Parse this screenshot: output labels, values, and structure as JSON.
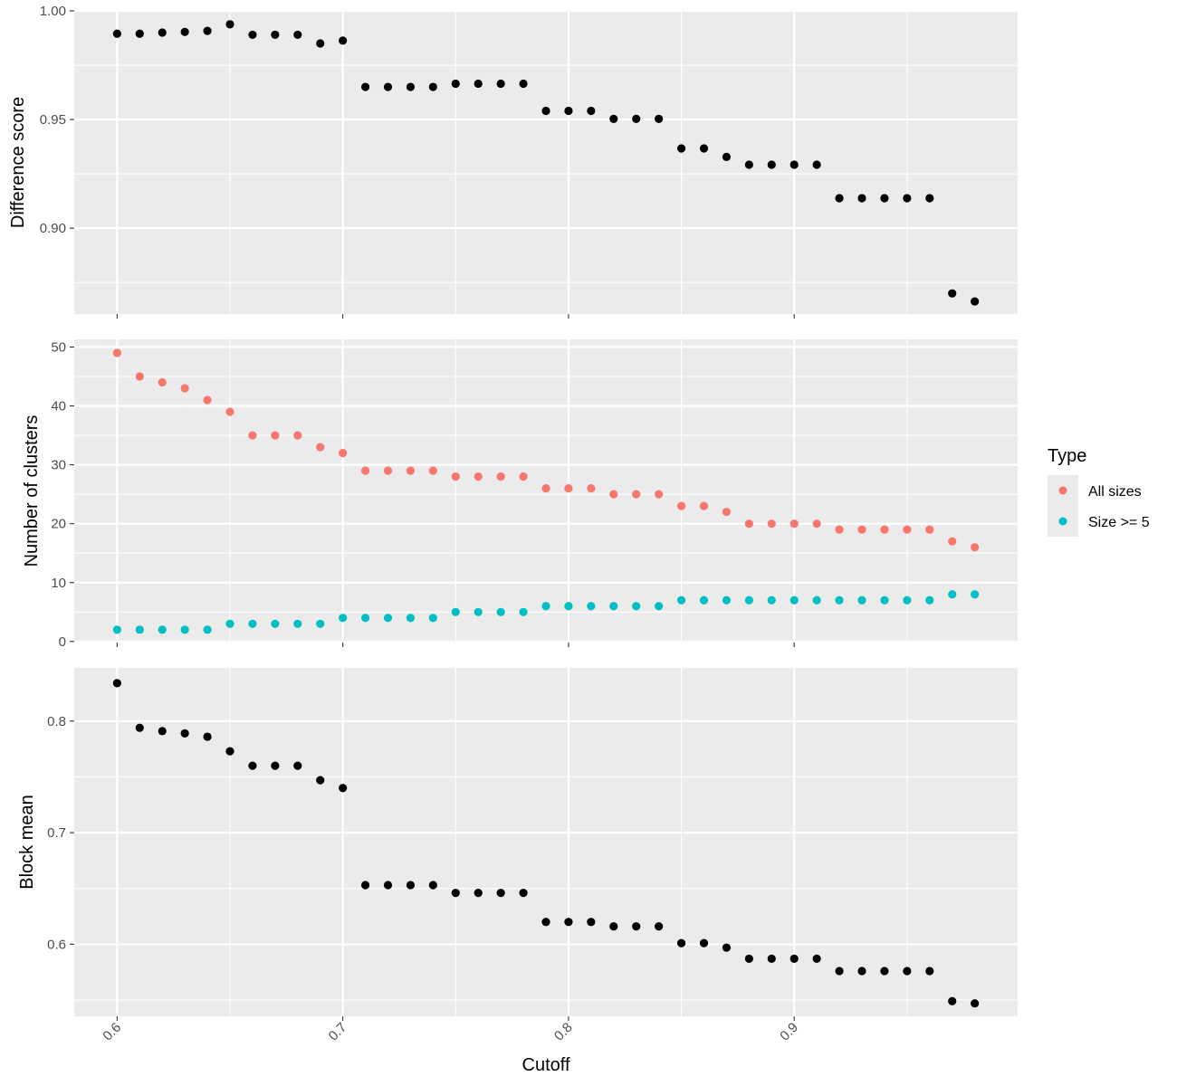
{
  "chart_data": [
    {
      "type": "scatter",
      "ylabel": "Difference score",
      "xlabel": "",
      "ylim": [
        0.8605,
        1.0
      ],
      "yticks": [
        0.9,
        0.95,
        1.0
      ],
      "ytick_labels": [
        "0.90",
        "0.95",
        "1.00"
      ],
      "xlim": [
        0.581,
        0.999
      ],
      "xticks": [
        0.6,
        0.7,
        0.8,
        0.9
      ],
      "grid": true,
      "series": [
        {
          "color": "#000000",
          "x": [
            0.6,
            0.61,
            0.62,
            0.63,
            0.64,
            0.65,
            0.66,
            0.67,
            0.68,
            0.69,
            0.7,
            0.71,
            0.72,
            0.73,
            0.74,
            0.75,
            0.76,
            0.77,
            0.78,
            0.79,
            0.8,
            0.81,
            0.82,
            0.83,
            0.84,
            0.85,
            0.86,
            0.87,
            0.88,
            0.89,
            0.9,
            0.91,
            0.92,
            0.93,
            0.94,
            0.95,
            0.96,
            0.97,
            0.98
          ],
          "y": [
            0.9895,
            0.9895,
            0.99,
            0.9903,
            0.9908,
            0.9938,
            0.989,
            0.989,
            0.989,
            0.985,
            0.9863,
            0.965,
            0.965,
            0.965,
            0.965,
            0.9665,
            0.9665,
            0.9665,
            0.9665,
            0.954,
            0.954,
            0.954,
            0.9503,
            0.9503,
            0.9503,
            0.9367,
            0.9367,
            0.9328,
            0.9292,
            0.9292,
            0.9292,
            0.9292,
            0.9138,
            0.9138,
            0.9138,
            0.9138,
            0.9138,
            0.87,
            0.8663
          ]
        }
      ]
    },
    {
      "type": "scatter",
      "ylabel": "Number of clusters",
      "xlabel": "",
      "ylim": [
        -0.18,
        51.3
      ],
      "yticks": [
        0,
        10,
        20,
        30,
        40,
        50
      ],
      "ytick_labels": [
        "0",
        "10",
        "20",
        "30",
        "40",
        "50"
      ],
      "xlim": [
        0.581,
        0.999
      ],
      "xticks": [
        0.6,
        0.7,
        0.8,
        0.9
      ],
      "grid": true,
      "legend": {
        "title": "Type",
        "placement": "right",
        "entries": [
          "All sizes",
          "Size >= 5"
        ]
      },
      "series": [
        {
          "name": "All sizes",
          "color": "#F8766D",
          "x": [
            0.6,
            0.61,
            0.62,
            0.63,
            0.64,
            0.65,
            0.66,
            0.67,
            0.68,
            0.69,
            0.7,
            0.71,
            0.72,
            0.73,
            0.74,
            0.75,
            0.76,
            0.77,
            0.78,
            0.79,
            0.8,
            0.81,
            0.82,
            0.83,
            0.84,
            0.85,
            0.86,
            0.87,
            0.88,
            0.89,
            0.9,
            0.91,
            0.92,
            0.93,
            0.94,
            0.95,
            0.96,
            0.97,
            0.98
          ],
          "y": [
            49,
            45,
            44,
            43,
            41,
            39,
            35,
            35,
            35,
            33,
            32,
            29,
            29,
            29,
            29,
            28,
            28,
            28,
            28,
            26,
            26,
            26,
            25,
            25,
            25,
            23,
            23,
            22,
            20,
            20,
            20,
            20,
            19,
            19,
            19,
            19,
            19,
            17,
            16
          ]
        },
        {
          "name": "Size >= 5",
          "color": "#00BFC4",
          "x": [
            0.6,
            0.61,
            0.62,
            0.63,
            0.64,
            0.65,
            0.66,
            0.67,
            0.68,
            0.69,
            0.7,
            0.71,
            0.72,
            0.73,
            0.74,
            0.75,
            0.76,
            0.77,
            0.78,
            0.79,
            0.8,
            0.81,
            0.82,
            0.83,
            0.84,
            0.85,
            0.86,
            0.87,
            0.88,
            0.89,
            0.9,
            0.91,
            0.92,
            0.93,
            0.94,
            0.95,
            0.96,
            0.97,
            0.98
          ],
          "y": [
            2,
            2,
            2,
            2,
            2,
            3,
            3,
            3,
            3,
            3,
            4,
            4,
            4,
            4,
            4,
            5,
            5,
            5,
            5,
            6,
            6,
            6,
            6,
            6,
            6,
            7,
            7,
            7,
            7,
            7,
            7,
            7,
            7,
            7,
            7,
            7,
            7,
            8,
            8
          ]
        }
      ]
    },
    {
      "type": "scatter",
      "ylabel": "Block mean",
      "xlabel": "Cutoff",
      "ylim": [
        0.5354,
        0.8477
      ],
      "yticks": [
        0.6,
        0.7,
        0.8
      ],
      "ytick_labels": [
        "0.6",
        "0.7",
        "0.8"
      ],
      "xlim": [
        0.581,
        0.999
      ],
      "xticks": [
        0.6,
        0.7,
        0.8,
        0.9
      ],
      "xtick_labels": [
        "0.6",
        "0.7",
        "0.8",
        "0.9"
      ],
      "grid": true,
      "series": [
        {
          "color": "#000000",
          "x": [
            0.6,
            0.61,
            0.62,
            0.63,
            0.64,
            0.65,
            0.66,
            0.67,
            0.68,
            0.69,
            0.7,
            0.71,
            0.72,
            0.73,
            0.74,
            0.75,
            0.76,
            0.77,
            0.78,
            0.79,
            0.8,
            0.81,
            0.82,
            0.83,
            0.84,
            0.85,
            0.86,
            0.87,
            0.88,
            0.89,
            0.9,
            0.91,
            0.92,
            0.93,
            0.94,
            0.95,
            0.96,
            0.97,
            0.98
          ],
          "y": [
            0.834,
            0.794,
            0.791,
            0.789,
            0.786,
            0.773,
            0.76,
            0.76,
            0.76,
            0.747,
            0.74,
            0.653,
            0.653,
            0.653,
            0.653,
            0.646,
            0.646,
            0.646,
            0.646,
            0.62,
            0.62,
            0.62,
            0.616,
            0.616,
            0.616,
            0.601,
            0.601,
            0.597,
            0.587,
            0.587,
            0.587,
            0.587,
            0.576,
            0.576,
            0.576,
            0.576,
            0.576,
            0.549,
            0.547
          ]
        }
      ]
    }
  ]
}
